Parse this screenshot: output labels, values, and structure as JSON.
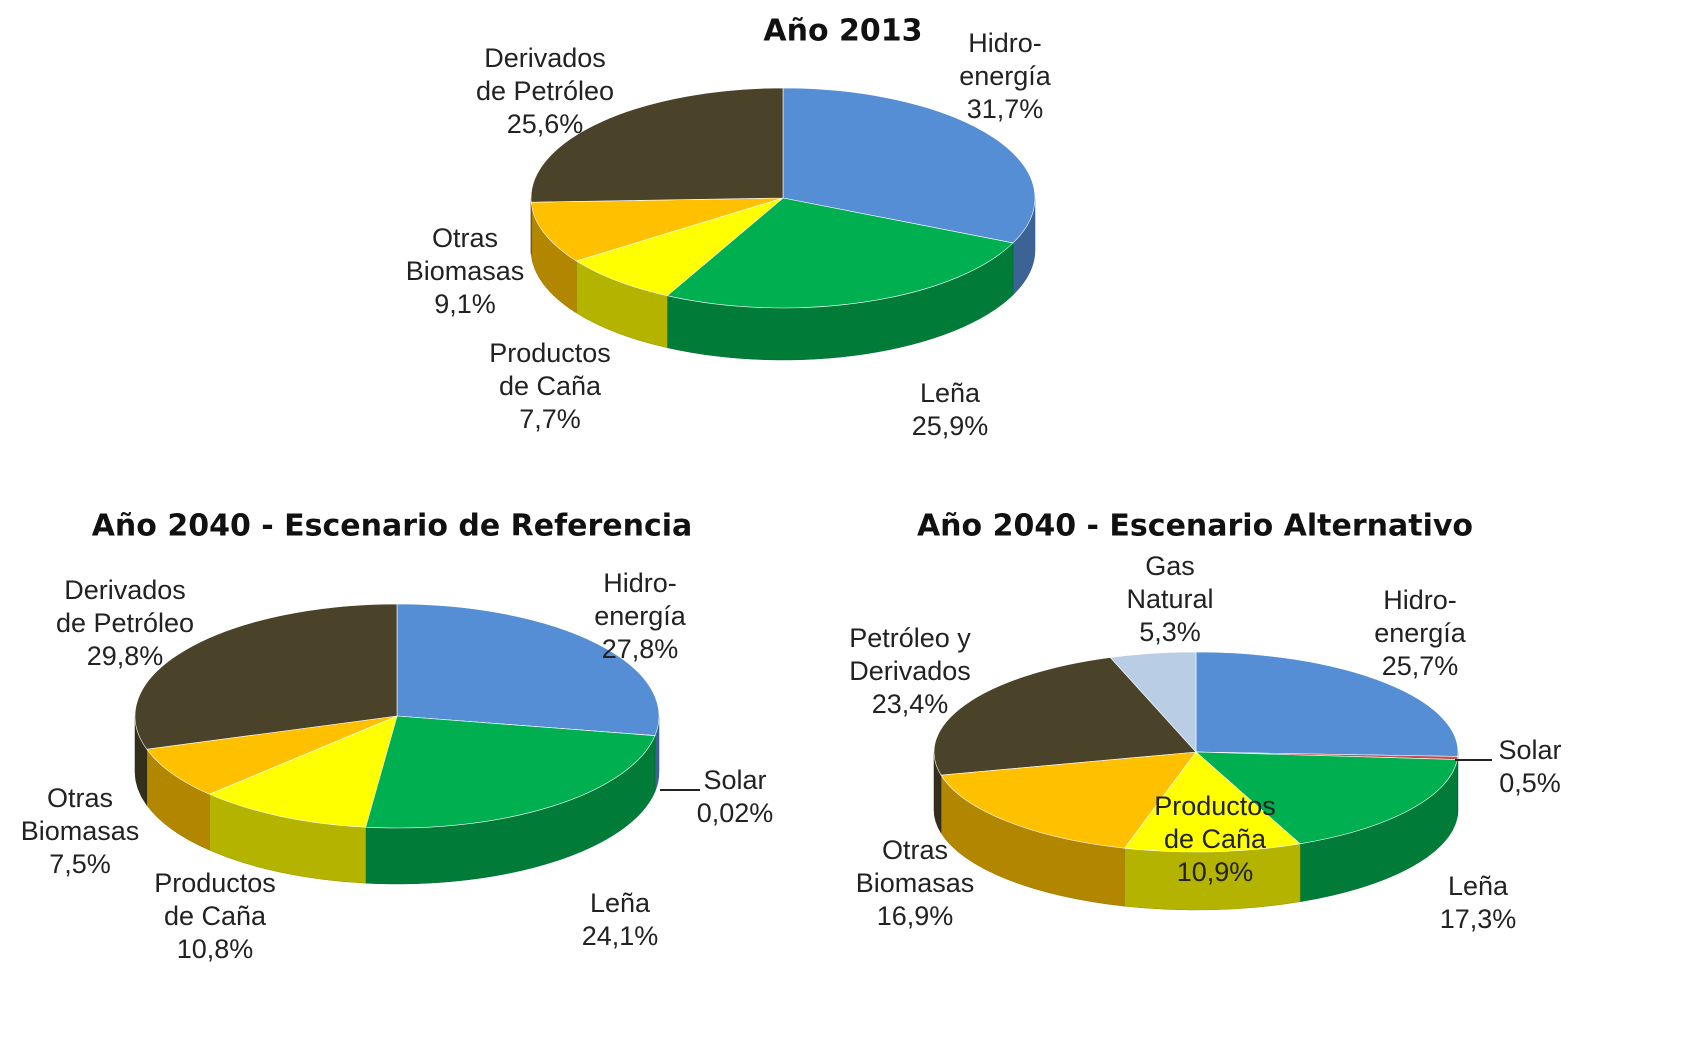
{
  "chart_data": [
    {
      "type": "pie",
      "title": "Año 2013",
      "categories": [
        [
          "Hidro-",
          "energía"
        ],
        [
          "Leña"
        ],
        [
          "Productos",
          "de Caña"
        ],
        [
          "Otras",
          "Biomasas"
        ],
        [
          "Derivados",
          "de Petróleo"
        ]
      ],
      "values": [
        31.7,
        25.9,
        7.7,
        9.1,
        25.6
      ],
      "value_labels": [
        "31,7%",
        "25,9%",
        "7,7%",
        "9,1%",
        "25,6%"
      ],
      "colors": [
        "#558ed5",
        "#00b050",
        "#ffff00",
        "#ffc000",
        "#4a4229"
      ]
    },
    {
      "type": "pie",
      "title": "Año 2040 - Escenario de Referencia",
      "categories": [
        [
          "Hidro-",
          "energía"
        ],
        [
          "Solar"
        ],
        [
          "Leña"
        ],
        [
          "Productos",
          "de Caña"
        ],
        [
          "Otras",
          "Biomasas"
        ],
        [
          "Derivados",
          "de Petróleo"
        ]
      ],
      "values": [
        27.8,
        0.02,
        24.1,
        10.8,
        7.5,
        29.8
      ],
      "value_labels": [
        "27,8%",
        "0,02%",
        "24,1%",
        "10,8%",
        "7,5%",
        "29,8%"
      ],
      "colors": [
        "#558ed5",
        "#c0504d",
        "#00b050",
        "#ffff00",
        "#ffc000",
        "#4a4229"
      ]
    },
    {
      "type": "pie",
      "title": "Año 2040 - Escenario Alternativo",
      "categories": [
        [
          "Hidro-",
          "energía"
        ],
        [
          "Solar"
        ],
        [
          "Leña"
        ],
        [
          "Productos",
          "de Caña"
        ],
        [
          "Otras",
          "Biomasas"
        ],
        [
          "Petróleo y",
          "Derivados"
        ],
        [
          "Gas",
          "Natural"
        ]
      ],
      "values": [
        25.7,
        0.5,
        17.3,
        10.9,
        16.9,
        23.4,
        5.3
      ],
      "value_labels": [
        "25,7%",
        "0,5%",
        "17,3%",
        "10,9%",
        "16,9%",
        "23,4%",
        "5,3%"
      ],
      "colors": [
        "#558ed5",
        "#c0504d",
        "#00b050",
        "#ffff00",
        "#ffc000",
        "#4a4229",
        "#b9cde5"
      ]
    }
  ]
}
